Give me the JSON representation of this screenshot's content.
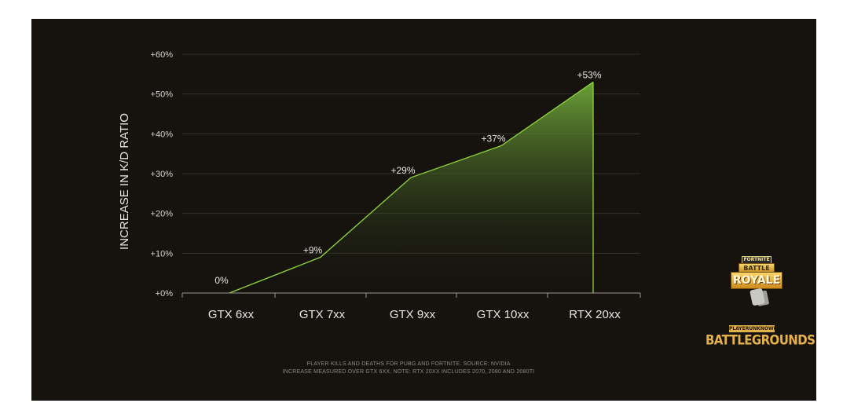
{
  "chart_data": {
    "type": "area",
    "title": "",
    "xlabel": "",
    "ylabel": "INCREASE IN K/D RATIO",
    "categories": [
      "GTX 6xx",
      "GTX 7xx",
      "GTX 9xx",
      "GTX 10xx",
      "RTX 20xx"
    ],
    "values": [
      0,
      9,
      29,
      37,
      53
    ],
    "data_labels": [
      "0%",
      "+9%",
      "+29%",
      "+37%",
      "+53%"
    ],
    "ylim": [
      0,
      60
    ],
    "y_ticks": [
      0,
      10,
      20,
      30,
      40,
      50,
      60
    ],
    "y_tick_labels": [
      "+0%",
      "+10%",
      "+20%",
      "+30%",
      "+40%",
      "+50%",
      "+60%"
    ],
    "grid": true,
    "legend": false
  },
  "footnote": {
    "line1": "PLAYER KILLS AND DEATHS FOR PUBG AND FORTNITE. SOURCE: NVIDIA",
    "line2": "INCREASE MEASURED OVER GTX  6XX. NOTE: RTX 20XX INCLUDES 2070, 2080 AND 2080TI"
  },
  "logos": {
    "fortnite_small": "FORTNITE",
    "fortnite_battle": "BATTLE",
    "fortnite_royale": "ROYALE",
    "pubg_top": "PLAYERUNKNOWN'S",
    "pubg_main": "BATTLEGROUNDS"
  },
  "colors": {
    "background": "#16130f",
    "line": "#8fd43c",
    "fill_top": "#6aa23a",
    "fill_bottom": "#16130f",
    "text": "#e8e6e0",
    "grid": "#3a3630"
  }
}
